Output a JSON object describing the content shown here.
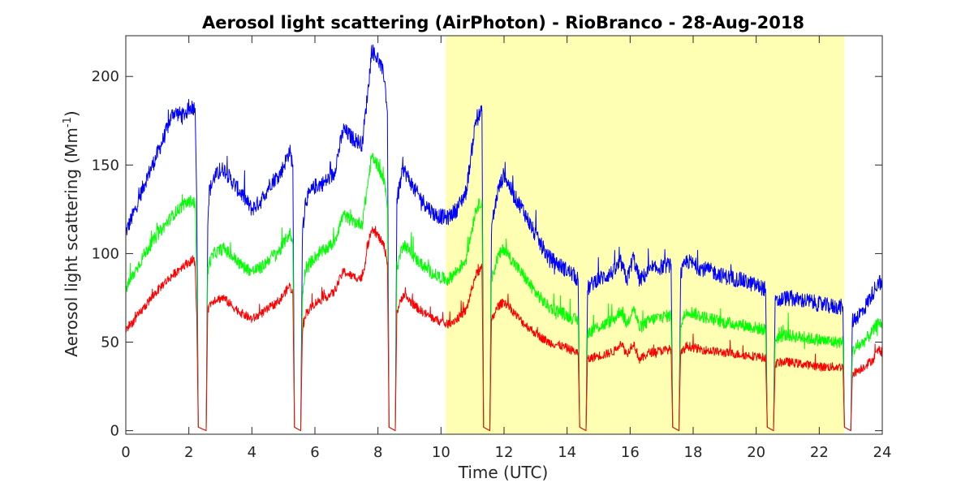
{
  "chart_data": {
    "type": "line",
    "title": "Aerosol light scattering (AirPhoton) - RioBranco - 28-Aug-2018",
    "xlabel": "Time (UTC)",
    "ylabel_main": "Aerosol light scattering (Mm",
    "ylabel_sup": "-1",
    "ylabel_close": ")",
    "xlim": [
      0,
      24
    ],
    "ylim": [
      -2,
      223
    ],
    "xticks": [
      0,
      2,
      4,
      6,
      8,
      10,
      12,
      14,
      16,
      18,
      20,
      22,
      24
    ],
    "yticks": [
      0,
      50,
      100,
      150,
      200
    ],
    "grid": false,
    "highlight": {
      "x_start": 10.15,
      "x_end": 22.8,
      "color": "#ffffb3"
    },
    "series": [
      {
        "color": "#0000ff",
        "noise": 4.5,
        "points": [
          [
            0,
            112
          ],
          [
            0.3,
            125
          ],
          [
            0.6,
            140
          ],
          [
            0.9,
            152
          ],
          [
            1.2,
            165
          ],
          [
            1.5,
            180
          ],
          [
            1.8,
            178
          ],
          [
            2.1,
            183
          ],
          [
            2.2,
            182
          ],
          [
            2.25,
            130
          ],
          [
            2.3,
            2
          ],
          [
            2.55,
            0
          ],
          [
            2.6,
            120
          ],
          [
            2.65,
            135
          ],
          [
            2.8,
            143
          ],
          [
            3.1,
            148
          ],
          [
            3.4,
            140
          ],
          [
            3.7,
            133
          ],
          [
            4.0,
            125
          ],
          [
            4.3,
            130
          ],
          [
            4.6,
            140
          ],
          [
            4.9,
            145
          ],
          [
            5.2,
            158
          ],
          [
            5.3,
            150
          ],
          [
            5.35,
            2
          ],
          [
            5.55,
            0
          ],
          [
            5.6,
            110
          ],
          [
            5.7,
            130
          ],
          [
            6.0,
            138
          ],
          [
            6.3,
            140
          ],
          [
            6.6,
            145
          ],
          [
            6.9,
            170
          ],
          [
            7.2,
            165
          ],
          [
            7.5,
            162
          ],
          [
            7.7,
            195
          ],
          [
            7.8,
            215
          ],
          [
            8.0,
            210
          ],
          [
            8.2,
            200
          ],
          [
            8.3,
            180
          ],
          [
            8.35,
            2
          ],
          [
            8.55,
            0
          ],
          [
            8.6,
            130
          ],
          [
            8.8,
            148
          ],
          [
            9.2,
            135
          ],
          [
            9.5,
            128
          ],
          [
            9.8,
            122
          ],
          [
            10.2,
            120
          ],
          [
            10.5,
            125
          ],
          [
            10.8,
            135
          ],
          [
            11.1,
            175
          ],
          [
            11.3,
            180
          ],
          [
            11.35,
            2
          ],
          [
            11.55,
            0
          ],
          [
            11.6,
            115
          ],
          [
            11.8,
            135
          ],
          [
            12.0,
            145
          ],
          [
            12.3,
            133
          ],
          [
            12.6,
            125
          ],
          [
            13.0,
            110
          ],
          [
            13.4,
            98
          ],
          [
            13.8,
            93
          ],
          [
            14.2,
            88
          ],
          [
            14.35,
            85
          ],
          [
            14.4,
            2
          ],
          [
            14.6,
            0
          ],
          [
            14.65,
            80
          ],
          [
            14.9,
            85
          ],
          [
            15.2,
            87
          ],
          [
            15.5,
            90
          ],
          [
            15.7,
            95
          ],
          [
            15.9,
            85
          ],
          [
            16.1,
            98
          ],
          [
            16.3,
            85
          ],
          [
            16.6,
            90
          ],
          [
            16.9,
            92
          ],
          [
            17.3,
            94
          ],
          [
            17.35,
            2
          ],
          [
            17.55,
            0
          ],
          [
            17.6,
            88
          ],
          [
            17.8,
            96
          ],
          [
            18.2,
            92
          ],
          [
            18.6,
            90
          ],
          [
            19.0,
            87
          ],
          [
            19.5,
            85
          ],
          [
            20.0,
            82
          ],
          [
            20.3,
            80
          ],
          [
            20.35,
            2
          ],
          [
            20.55,
            0
          ],
          [
            20.6,
            72
          ],
          [
            20.9,
            75
          ],
          [
            21.3,
            74
          ],
          [
            21.7,
            73
          ],
          [
            22.1,
            71
          ],
          [
            22.5,
            70
          ],
          [
            22.75,
            70
          ],
          [
            22.8,
            2
          ],
          [
            23.0,
            0
          ],
          [
            23.05,
            62
          ],
          [
            23.4,
            68
          ],
          [
            23.7,
            78
          ],
          [
            23.9,
            85
          ],
          [
            24,
            80
          ]
        ]
      },
      {
        "color": "#00ff00",
        "noise": 3.5,
        "points": [
          [
            0,
            80
          ],
          [
            0.3,
            90
          ],
          [
            0.6,
            100
          ],
          [
            0.9,
            108
          ],
          [
            1.2,
            115
          ],
          [
            1.5,
            122
          ],
          [
            1.8,
            127
          ],
          [
            2.1,
            130
          ],
          [
            2.2,
            128
          ],
          [
            2.25,
            90
          ],
          [
            2.3,
            2
          ],
          [
            2.55,
            0
          ],
          [
            2.6,
            90
          ],
          [
            2.65,
            95
          ],
          [
            2.8,
            100
          ],
          [
            3.1,
            103
          ],
          [
            3.4,
            98
          ],
          [
            3.7,
            93
          ],
          [
            4.0,
            90
          ],
          [
            4.3,
            92
          ],
          [
            4.6,
            98
          ],
          [
            4.9,
            102
          ],
          [
            5.2,
            112
          ],
          [
            5.3,
            105
          ],
          [
            5.35,
            2
          ],
          [
            5.55,
            0
          ],
          [
            5.6,
            75
          ],
          [
            5.7,
            92
          ],
          [
            6.0,
            98
          ],
          [
            6.3,
            102
          ],
          [
            6.6,
            106
          ],
          [
            6.9,
            122
          ],
          [
            7.2,
            118
          ],
          [
            7.5,
            117
          ],
          [
            7.7,
            142
          ],
          [
            7.8,
            155
          ],
          [
            8.0,
            150
          ],
          [
            8.2,
            140
          ],
          [
            8.3,
            128
          ],
          [
            8.35,
            2
          ],
          [
            8.55,
            0
          ],
          [
            8.6,
            92
          ],
          [
            8.8,
            106
          ],
          [
            9.2,
            97
          ],
          [
            9.5,
            92
          ],
          [
            9.8,
            88
          ],
          [
            10.2,
            85
          ],
          [
            10.5,
            90
          ],
          [
            10.8,
            97
          ],
          [
            11.1,
            125
          ],
          [
            11.3,
            130
          ],
          [
            11.35,
            2
          ],
          [
            11.55,
            0
          ],
          [
            11.6,
            85
          ],
          [
            11.8,
            98
          ],
          [
            12.0,
            103
          ],
          [
            12.3,
            95
          ],
          [
            12.6,
            88
          ],
          [
            13.0,
            78
          ],
          [
            13.4,
            70
          ],
          [
            13.8,
            67
          ],
          [
            14.2,
            63
          ],
          [
            14.35,
            62
          ],
          [
            14.4,
            2
          ],
          [
            14.6,
            0
          ],
          [
            14.65,
            55
          ],
          [
            14.9,
            58
          ],
          [
            15.2,
            60
          ],
          [
            15.5,
            63
          ],
          [
            15.7,
            68
          ],
          [
            15.9,
            60
          ],
          [
            16.1,
            70
          ],
          [
            16.3,
            58
          ],
          [
            16.6,
            62
          ],
          [
            16.9,
            64
          ],
          [
            17.3,
            65
          ],
          [
            17.35,
            2
          ],
          [
            17.55,
            0
          ],
          [
            17.6,
            60
          ],
          [
            17.8,
            68
          ],
          [
            18.2,
            65
          ],
          [
            18.6,
            63
          ],
          [
            19.0,
            61
          ],
          [
            19.5,
            60
          ],
          [
            20.0,
            58
          ],
          [
            20.3,
            57
          ],
          [
            20.35,
            2
          ],
          [
            20.55,
            0
          ],
          [
            20.6,
            52
          ],
          [
            20.9,
            54
          ],
          [
            21.3,
            53
          ],
          [
            21.7,
            52
          ],
          [
            22.1,
            51
          ],
          [
            22.5,
            50
          ],
          [
            22.75,
            50
          ],
          [
            22.8,
            2
          ],
          [
            23.0,
            0
          ],
          [
            23.05,
            45
          ],
          [
            23.4,
            50
          ],
          [
            23.7,
            56
          ],
          [
            23.9,
            62
          ],
          [
            24,
            58
          ]
        ]
      },
      {
        "color": "#ff0000",
        "noise": 2.5,
        "points": [
          [
            0,
            57
          ],
          [
            0.3,
            63
          ],
          [
            0.6,
            70
          ],
          [
            0.9,
            77
          ],
          [
            1.2,
            83
          ],
          [
            1.5,
            88
          ],
          [
            1.8,
            93
          ],
          [
            2.1,
            96
          ],
          [
            2.2,
            95
          ],
          [
            2.25,
            65
          ],
          [
            2.3,
            2
          ],
          [
            2.55,
            0
          ],
          [
            2.6,
            68
          ],
          [
            2.65,
            71
          ],
          [
            2.8,
            74
          ],
          [
            3.1,
            75
          ],
          [
            3.4,
            70
          ],
          [
            3.7,
            66
          ],
          [
            4.0,
            63
          ],
          [
            4.3,
            66
          ],
          [
            4.6,
            70
          ],
          [
            4.9,
            74
          ],
          [
            5.2,
            82
          ],
          [
            5.3,
            77
          ],
          [
            5.35,
            2
          ],
          [
            5.55,
            0
          ],
          [
            5.6,
            55
          ],
          [
            5.7,
            66
          ],
          [
            6.0,
            72
          ],
          [
            6.3,
            75
          ],
          [
            6.6,
            78
          ],
          [
            6.9,
            90
          ],
          [
            7.2,
            87
          ],
          [
            7.5,
            86
          ],
          [
            7.7,
            106
          ],
          [
            7.8,
            115
          ],
          [
            8.0,
            110
          ],
          [
            8.2,
            104
          ],
          [
            8.3,
            95
          ],
          [
            8.35,
            2
          ],
          [
            8.55,
            0
          ],
          [
            8.6,
            67
          ],
          [
            8.8,
            77
          ],
          [
            9.2,
            70
          ],
          [
            9.5,
            66
          ],
          [
            9.8,
            63
          ],
          [
            10.2,
            60
          ],
          [
            10.5,
            63
          ],
          [
            10.8,
            68
          ],
          [
            11.1,
            88
          ],
          [
            11.3,
            92
          ],
          [
            11.35,
            2
          ],
          [
            11.55,
            0
          ],
          [
            11.6,
            62
          ],
          [
            11.8,
            70
          ],
          [
            12.0,
            73
          ],
          [
            12.3,
            67
          ],
          [
            12.6,
            61
          ],
          [
            13.0,
            55
          ],
          [
            13.4,
            50
          ],
          [
            13.8,
            48
          ],
          [
            14.2,
            45
          ],
          [
            14.35,
            44
          ],
          [
            14.4,
            2
          ],
          [
            14.6,
            0
          ],
          [
            14.65,
            40
          ],
          [
            14.9,
            42
          ],
          [
            15.2,
            43
          ],
          [
            15.5,
            45
          ],
          [
            15.7,
            50
          ],
          [
            15.9,
            43
          ],
          [
            16.1,
            50
          ],
          [
            16.3,
            40
          ],
          [
            16.6,
            44
          ],
          [
            16.9,
            45
          ],
          [
            17.3,
            46
          ],
          [
            17.35,
            2
          ],
          [
            17.55,
            0
          ],
          [
            17.6,
            43
          ],
          [
            17.8,
            48
          ],
          [
            18.2,
            46
          ],
          [
            18.6,
            45
          ],
          [
            19.0,
            44
          ],
          [
            19.5,
            43
          ],
          [
            20.0,
            42
          ],
          [
            20.3,
            41
          ],
          [
            20.35,
            2
          ],
          [
            20.55,
            0
          ],
          [
            20.6,
            38
          ],
          [
            20.9,
            39
          ],
          [
            21.3,
            38
          ],
          [
            21.7,
            37
          ],
          [
            22.1,
            36
          ],
          [
            22.5,
            36
          ],
          [
            22.75,
            36
          ],
          [
            22.8,
            2
          ],
          [
            23.0,
            0
          ],
          [
            23.05,
            32
          ],
          [
            23.4,
            36
          ],
          [
            23.7,
            40
          ],
          [
            23.9,
            46
          ],
          [
            24,
            44
          ]
        ]
      }
    ]
  }
}
